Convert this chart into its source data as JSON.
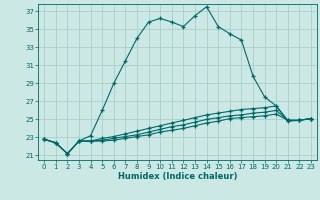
{
  "xlabel": "Humidex (Indice chaleur)",
  "ylabel": "",
  "bg_color": "#cce8e4",
  "grid_color": "#aaceca",
  "line_color": "#006868",
  "xlim": [
    -0.5,
    23.5
  ],
  "ylim": [
    20.5,
    37.8
  ],
  "yticks": [
    21,
    23,
    25,
    27,
    29,
    31,
    33,
    35,
    37
  ],
  "xticks": [
    0,
    1,
    2,
    3,
    4,
    5,
    6,
    7,
    8,
    9,
    10,
    11,
    12,
    13,
    14,
    15,
    16,
    17,
    18,
    19,
    20,
    21,
    22,
    23
  ],
  "lines": [
    {
      "x": [
        0,
        1,
        2,
        3,
        4,
        5,
        6,
        7,
        8,
        9,
        10,
        11,
        12,
        13,
        14,
        15,
        16,
        17,
        18,
        19,
        20,
        21,
        22,
        23
      ],
      "y": [
        22.8,
        22.4,
        21.2,
        22.6,
        23.2,
        26.0,
        29.0,
        31.5,
        34.0,
        35.8,
        36.2,
        35.8,
        35.3,
        36.5,
        37.5,
        35.3,
        34.5,
        33.8,
        29.8,
        27.5,
        26.5,
        24.8,
        24.9,
        25.1
      ]
    },
    {
      "x": [
        0,
        1,
        2,
        3,
        4,
        5,
        6,
        7,
        8,
        9,
        10,
        11,
        12,
        13,
        14,
        15,
        16,
        17,
        18,
        19,
        20,
        21,
        22,
        23
      ],
      "y": [
        22.8,
        22.4,
        21.2,
        22.6,
        22.6,
        22.9,
        23.1,
        23.4,
        23.7,
        24.0,
        24.3,
        24.6,
        24.9,
        25.2,
        25.5,
        25.7,
        25.9,
        26.1,
        26.2,
        26.3,
        26.5,
        24.9,
        24.9,
        25.1
      ]
    },
    {
      "x": [
        0,
        1,
        2,
        3,
        4,
        5,
        6,
        7,
        8,
        9,
        10,
        11,
        12,
        13,
        14,
        15,
        16,
        17,
        18,
        19,
        20,
        21,
        22,
        23
      ],
      "y": [
        22.8,
        22.4,
        21.2,
        22.6,
        22.6,
        22.7,
        22.9,
        23.1,
        23.3,
        23.6,
        23.9,
        24.2,
        24.4,
        24.7,
        25.0,
        25.2,
        25.4,
        25.5,
        25.7,
        25.8,
        26.0,
        24.9,
        24.9,
        25.1
      ]
    },
    {
      "x": [
        0,
        1,
        2,
        3,
        4,
        5,
        6,
        7,
        8,
        9,
        10,
        11,
        12,
        13,
        14,
        15,
        16,
        17,
        18,
        19,
        20,
        21,
        22,
        23
      ],
      "y": [
        22.8,
        22.4,
        21.2,
        22.6,
        22.6,
        22.6,
        22.7,
        22.9,
        23.1,
        23.3,
        23.6,
        23.8,
        24.0,
        24.3,
        24.6,
        24.8,
        25.1,
        25.2,
        25.3,
        25.4,
        25.6,
        24.9,
        24.9,
        25.1
      ]
    }
  ]
}
